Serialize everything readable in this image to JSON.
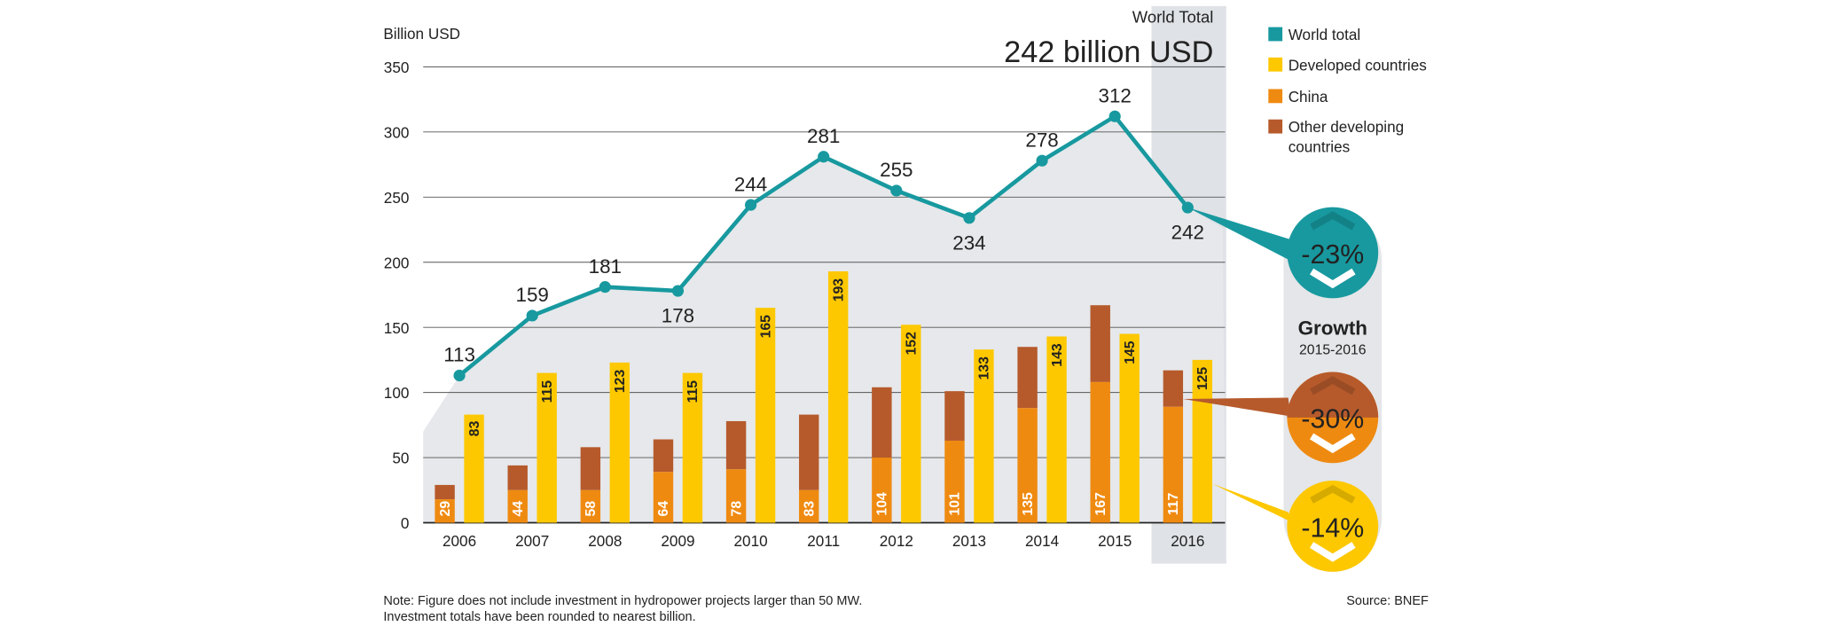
{
  "chart_data": {
    "type": "bar",
    "title": "World Total",
    "subtitle": "242 billion USD",
    "ylabel": "Billion USD",
    "xlabel": "",
    "ylim": [
      0,
      350
    ],
    "yticks": [
      0,
      50,
      100,
      150,
      200,
      250,
      300,
      350
    ],
    "grid": true,
    "legend_position": "right",
    "categories": [
      "2006",
      "2007",
      "2008",
      "2009",
      "2010",
      "2011",
      "2012",
      "2013",
      "2014",
      "2015",
      "2016"
    ],
    "highlight_category": "2016",
    "series": [
      {
        "name": "World total",
        "type": "line",
        "color": "#17999f",
        "values": [
          113,
          159,
          181,
          178,
          244,
          281,
          255,
          234,
          278,
          312,
          242
        ]
      },
      {
        "name": "Developed countries",
        "type": "bar",
        "color": "#fdc800",
        "values": [
          83,
          115,
          123,
          115,
          165,
          193,
          152,
          133,
          143,
          145,
          125
        ]
      },
      {
        "name": "China",
        "type": "bar-stack-bottom",
        "color": "#ef8a11",
        "values": [
          18,
          25,
          25,
          39,
          41,
          25,
          50,
          63,
          88,
          108,
          89
        ]
      },
      {
        "name": "Other developing countries",
        "type": "bar-stack-top",
        "color": "#b65a2c",
        "values": [
          11,
          19,
          33,
          25,
          37,
          58,
          54,
          38,
          47,
          59,
          28
        ]
      }
    ],
    "developing_totals": [
      29,
      44,
      58,
      64,
      78,
      83,
      104,
      101,
      135,
      167,
      117
    ],
    "growth": {
      "title": "Growth",
      "period": "2015-2016",
      "items": [
        {
          "label": "-23%",
          "series": "World total",
          "color": "#17999f"
        },
        {
          "label": "-30%",
          "series": "Developing",
          "color": "#ef8a11",
          "color2": "#b65a2c"
        },
        {
          "label": "-14%",
          "series": "Developed countries",
          "color": "#fdc800"
        }
      ]
    },
    "note_lines": [
      "Note: Figure does not include investment in hydropower projects larger than 50 MW.",
      "Investment totals have been rounded to nearest billion."
    ],
    "source": "Source: BNEF"
  }
}
